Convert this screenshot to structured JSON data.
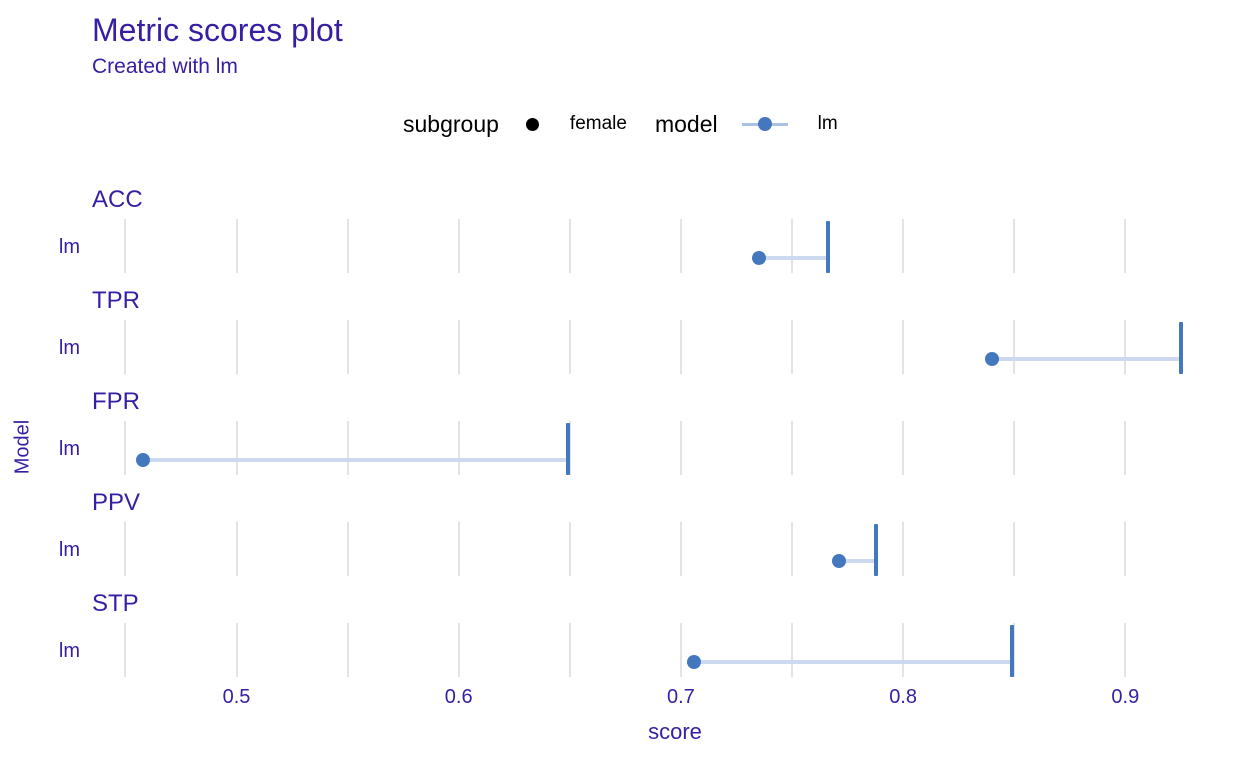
{
  "title": "Metric scores plot",
  "subtitle": "Created with lm",
  "legend": {
    "subgroup_title": "subgroup",
    "subgroup_items": [
      {
        "label": "female",
        "color": "#000000"
      }
    ],
    "model_title": "model",
    "model_items": [
      {
        "label": "lm",
        "color": "#4378bf"
      }
    ]
  },
  "axes": {
    "x_title": "score",
    "y_title": "Model"
  },
  "colors": {
    "title_text": "#371ea3",
    "axis_text": "#371ea3",
    "facet_label_text": "#371ea3",
    "model_blue": "#4378bf",
    "range_line": "#ccd9ee",
    "legend_glyph_line": "#a8c1e4",
    "gridline": "#e3e3e3",
    "legend_text": "#000000",
    "subgroup_marker": "#000000"
  },
  "chart_data": {
    "type": "dot-range",
    "title": "Metric scores plot",
    "subtitle": "Created with lm",
    "xlabel": "score",
    "ylabel": "Model",
    "x_axis": {
      "ticks": [
        0.5,
        0.6,
        0.7,
        0.8,
        0.9
      ],
      "gridlines": [
        0.45,
        0.5,
        0.55,
        0.6,
        0.65,
        0.7,
        0.75,
        0.8,
        0.85,
        0.9
      ],
      "range": [
        0.443,
        0.955
      ]
    },
    "legend_position": "top",
    "grid": "vertical-only",
    "facets": [
      {
        "metric": "ACC",
        "row": "lm",
        "model": "lm",
        "subgroup": "female",
        "score": 0.735,
        "ref_score": 0.766
      },
      {
        "metric": "TPR",
        "row": "lm",
        "model": "lm",
        "subgroup": "female",
        "score": 0.84,
        "ref_score": 0.925
      },
      {
        "metric": "FPR",
        "row": "lm",
        "model": "lm",
        "subgroup": "female",
        "score": 0.458,
        "ref_score": 0.649
      },
      {
        "metric": "PPV",
        "row": "lm",
        "model": "lm",
        "subgroup": "female",
        "score": 0.771,
        "ref_score": 0.788
      },
      {
        "metric": "STP",
        "row": "lm",
        "model": "lm",
        "subgroup": "female",
        "score": 0.706,
        "ref_score": 0.849
      }
    ]
  }
}
